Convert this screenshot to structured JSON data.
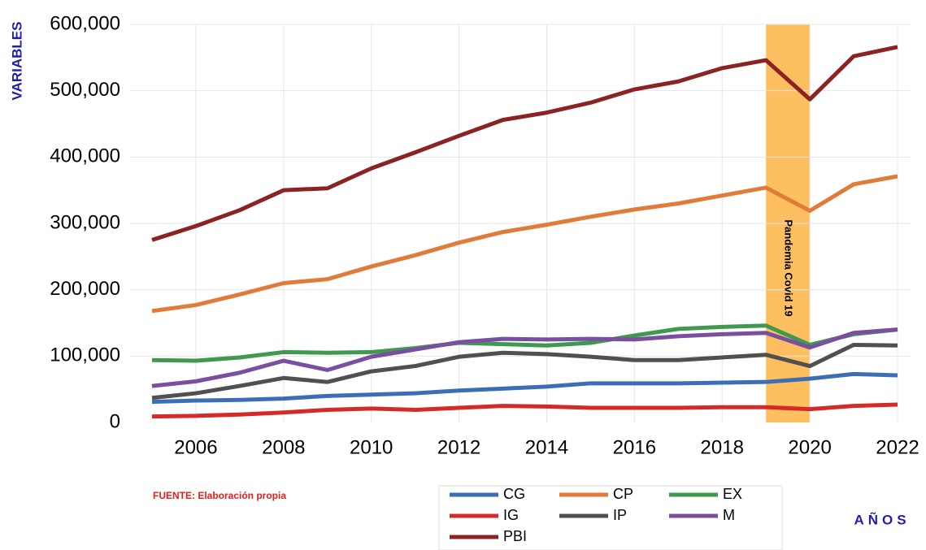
{
  "chart_data": {
    "type": "line",
    "y_label": "VARIABLES",
    "x_label": "AÑOS",
    "source": "FUENTE: Elaboración propia",
    "x": [
      2005,
      2006,
      2007,
      2008,
      2009,
      2010,
      2011,
      2012,
      2013,
      2014,
      2015,
      2016,
      2017,
      2018,
      2019,
      2020,
      2021,
      2022
    ],
    "xlim": [
      2005,
      2022
    ],
    "xticks": [
      2006,
      2008,
      2010,
      2012,
      2014,
      2016,
      2018,
      2020,
      2022
    ],
    "ylim": [
      0,
      600000
    ],
    "yticks": [
      0,
      {
        "value": 100000,
        "label": "100,000"
      },
      {
        "value": 200000,
        "label": "200,000"
      },
      {
        "value": 300000,
        "label": "300,000"
      },
      {
        "value": 400000,
        "label": "400,000"
      },
      {
        "value": 500000,
        "label": "500,000"
      },
      {
        "value": 600000,
        "label": "600,000"
      }
    ],
    "grid": true,
    "shade": {
      "from": 2019,
      "to": 2020,
      "label": "Pandemia Covid 19",
      "color": "#fdbf5f"
    },
    "series": [
      {
        "name": "CG",
        "color": "#3a6fb6",
        "values": [
          31000,
          33000,
          34000,
          36000,
          40000,
          42000,
          44000,
          48000,
          51000,
          54000,
          59000,
          59000,
          59000,
          60000,
          61000,
          66000,
          73000,
          71000
        ]
      },
      {
        "name": "CP",
        "color": "#e07b39",
        "values": [
          168000,
          177000,
          193000,
          210000,
          216000,
          235000,
          252000,
          271000,
          287000,
          298000,
          310000,
          321000,
          330000,
          342000,
          354000,
          319000,
          359000,
          371000
        ]
      },
      {
        "name": "EX",
        "color": "#3f9a4f",
        "values": [
          94000,
          93000,
          98000,
          106000,
          105000,
          106000,
          112000,
          120000,
          118000,
          116000,
          120000,
          131000,
          141000,
          144000,
          146000,
          117000,
          133000,
          140000
        ]
      },
      {
        "name": "IG",
        "color": "#d42a2a",
        "values": [
          9000,
          10000,
          12000,
          15000,
          19000,
          21000,
          19000,
          22000,
          25000,
          24000,
          22000,
          22000,
          22000,
          23000,
          23000,
          20000,
          25000,
          27000
        ]
      },
      {
        "name": "IP",
        "color": "#505050",
        "values": [
          37000,
          44000,
          55000,
          67000,
          61000,
          77000,
          85000,
          99000,
          105000,
          103000,
          99000,
          94000,
          94000,
          98000,
          102000,
          85000,
          117000,
          116000
        ]
      },
      {
        "name": "M",
        "color": "#7a4ea0",
        "values": [
          55000,
          62000,
          75000,
          93000,
          79000,
          99000,
          110000,
          121000,
          126000,
          125000,
          126000,
          125000,
          130000,
          133000,
          135000,
          113000,
          135000,
          140000
        ]
      },
      {
        "name": "PBI",
        "color": "#8b2323",
        "values": [
          275000,
          296000,
          320000,
          350000,
          353000,
          383000,
          407000,
          432000,
          456000,
          467000,
          482000,
          502000,
          514000,
          534000,
          546000,
          487000,
          552000,
          566000
        ]
      }
    ]
  }
}
